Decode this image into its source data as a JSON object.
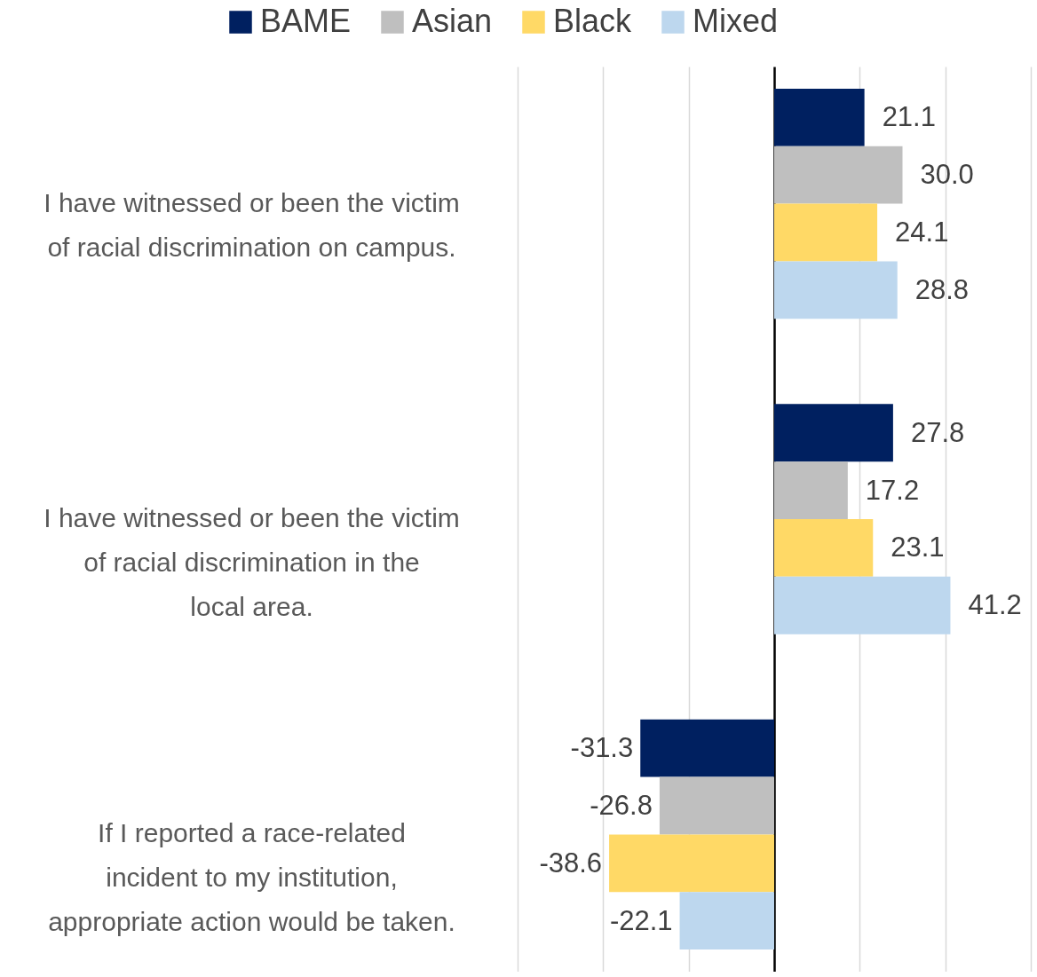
{
  "chart_data": {
    "type": "bar",
    "orientation": "horizontal",
    "categories": [
      "I have witnessed or been the victim of racial discrimination on campus.",
      "I have witnessed or been the victim of racial discrimination in the local area.",
      "If I reported a race-related incident to my institution, appropriate action would be taken."
    ],
    "series": [
      {
        "name": "BAME",
        "color": "#002060",
        "values": [
          21.1,
          27.8,
          -31.3
        ],
        "value_labels": [
          "21.1",
          "27.8",
          "-31.3"
        ]
      },
      {
        "name": "Asian",
        "color": "#bfbfbf",
        "values": [
          30.0,
          17.2,
          -26.8
        ],
        "value_labels": [
          "30.0",
          "17.2",
          "-26.8"
        ]
      },
      {
        "name": "Black",
        "color": "#ffd966",
        "values": [
          24.1,
          23.1,
          -38.6
        ],
        "value_labels": [
          "24.1",
          "23.1",
          "-38.6"
        ]
      },
      {
        "name": "Mixed",
        "color": "#bdd7ee",
        "values": [
          28.8,
          41.2,
          -22.1
        ],
        "value_labels": [
          "28.8",
          "41.2",
          "-22.1"
        ]
      }
    ],
    "xlim": [
      -60,
      60
    ],
    "xticks": [
      {
        "value": -60,
        "label": null
      },
      {
        "value": -40,
        "label": null
      },
      {
        "value": -20,
        "label": null
      },
      {
        "value": 0,
        "label": null
      },
      {
        "value": 20,
        "label": null
      },
      {
        "value": 40,
        "label": null
      },
      {
        "value": 60,
        "label": null
      }
    ],
    "tick_labels": "y",
    "grid": "x",
    "legend": "top"
  }
}
